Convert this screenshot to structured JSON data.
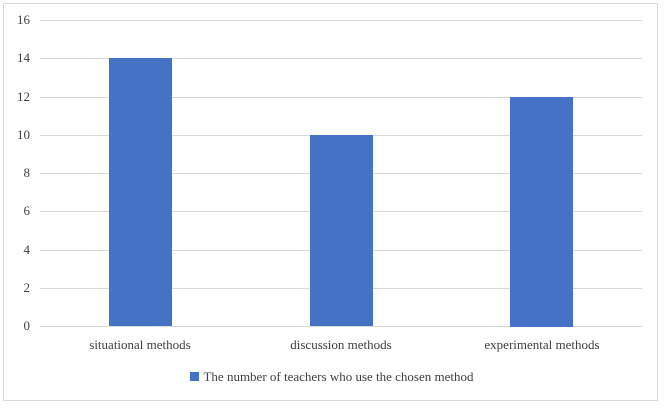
{
  "chart_data": {
    "type": "bar",
    "title": "",
    "xlabel": "",
    "ylabel": "",
    "categories": [
      "situational methods",
      "discussion methods",
      "experimental methods"
    ],
    "series": [
      {
        "name": "The number of teachers who use the chosen method",
        "values": [
          14,
          10,
          12
        ],
        "color": "#4472c4"
      }
    ],
    "ylim": [
      0,
      16
    ],
    "yticks": [
      "0",
      "2",
      "4",
      "6",
      "8",
      "10",
      "12",
      "14",
      "16"
    ],
    "grid": true,
    "legend_position": "bottom"
  }
}
